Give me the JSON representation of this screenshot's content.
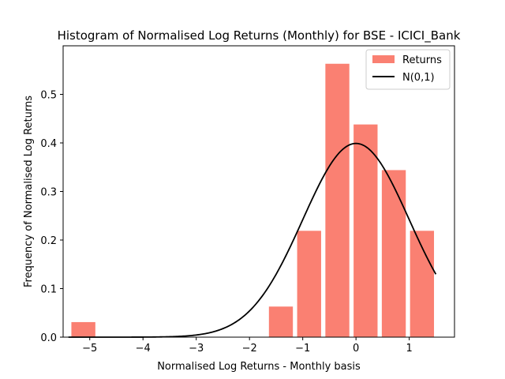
{
  "chart_data": {
    "type": "bar",
    "title": "Histogram of Normalised Log Returns (Monthly) for BSE - ICICI_Bank",
    "xlabel": "Normalised Log Returns - Monthly basis",
    "ylabel": "Frequency of Normalised Log Returns",
    "xlim": [
      -5.5,
      1.85
    ],
    "ylim": [
      0.0,
      0.6
    ],
    "xticks": [
      -5,
      -4,
      -3,
      -2,
      -1,
      0,
      1
    ],
    "xtick_labels": [
      "−5",
      "−4",
      "−3",
      "−2",
      "−1",
      "0",
      "1"
    ],
    "yticks": [
      0.0,
      0.1,
      0.2,
      0.3,
      0.4,
      0.5
    ],
    "ytick_labels": [
      "0.0",
      "0.1",
      "0.2",
      "0.3",
      "0.4",
      "0.5"
    ],
    "grid": false,
    "legend_position": "top-right",
    "bar_color": "#fa8072",
    "line_color": "#000000",
    "series": [
      {
        "name": "Returns",
        "kind": "bar",
        "bins": [
          {
            "center": -5.12,
            "value": 0.031
          },
          {
            "center": -1.41,
            "value": 0.063
          },
          {
            "center": -0.88,
            "value": 0.219
          },
          {
            "center": -0.35,
            "value": 0.563
          },
          {
            "center": 0.18,
            "value": 0.438
          },
          {
            "center": 0.71,
            "value": 0.344
          },
          {
            "center": 1.24,
            "value": 0.219
          }
        ],
        "bar_width": 0.45
      },
      {
        "name": "N(0,1)",
        "kind": "line",
        "function": "normal_pdf",
        "x_range": [
          -5.4,
          1.5
        ]
      }
    ]
  }
}
